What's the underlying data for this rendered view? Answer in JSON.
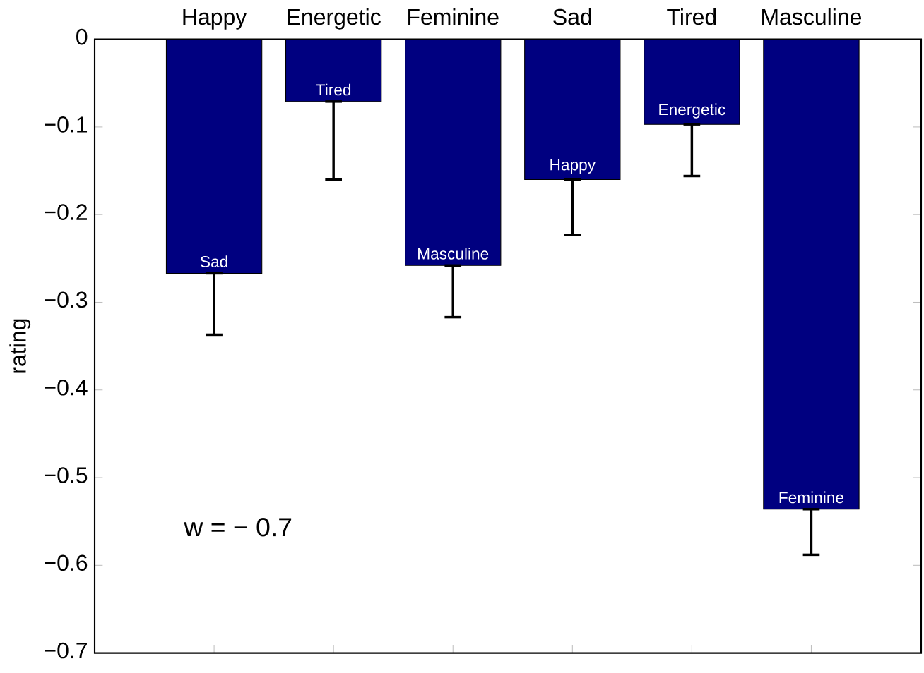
{
  "chart_data": {
    "type": "bar",
    "ylabel": "rating",
    "categories": [
      "Happy",
      "Energetic",
      "Feminine",
      "Sad",
      "Tired",
      "Masculine"
    ],
    "values": [
      -0.267,
      -0.071,
      -0.258,
      -0.16,
      -0.097,
      -0.536
    ],
    "errors": [
      [
        -0.337,
        -0.267
      ],
      [
        -0.16,
        -0.071
      ],
      [
        -0.317,
        -0.258
      ],
      [
        -0.223,
        -0.16
      ],
      [
        -0.156,
        -0.097
      ],
      [
        -0.588,
        -0.536
      ]
    ],
    "color": "#000080",
    "ylim": [
      -0.7,
      0
    ],
    "yticks": [
      {
        "value": -0.7,
        "label": "−0.7"
      },
      {
        "value": -0.6,
        "label": "−0.6"
      },
      {
        "value": -0.5,
        "label": "−0.5"
      },
      {
        "value": -0.4,
        "label": "−0.4"
      },
      {
        "value": -0.3,
        "label": "−0.3"
      },
      {
        "value": -0.2,
        "label": "−0.2"
      },
      {
        "value": -0.1,
        "label": "−0.1"
      },
      {
        "value": 0,
        "label": "0"
      }
    ],
    "grid": false,
    "annotations": [
      {
        "text": "Sad",
        "x": "Happy",
        "y": -0.267
      },
      {
        "text": "Tired",
        "x": "Energetic",
        "y": -0.071
      },
      {
        "text": "Masculine",
        "x": "Feminine",
        "y": -0.258
      },
      {
        "text": "Happy",
        "x": "Sad",
        "y": -0.16
      },
      {
        "text": "Energetic",
        "x": "Tired",
        "y": -0.097
      },
      {
        "text": "Feminine",
        "x": "Masculine",
        "y": -0.536
      },
      "w = − 0.7"
    ]
  }
}
